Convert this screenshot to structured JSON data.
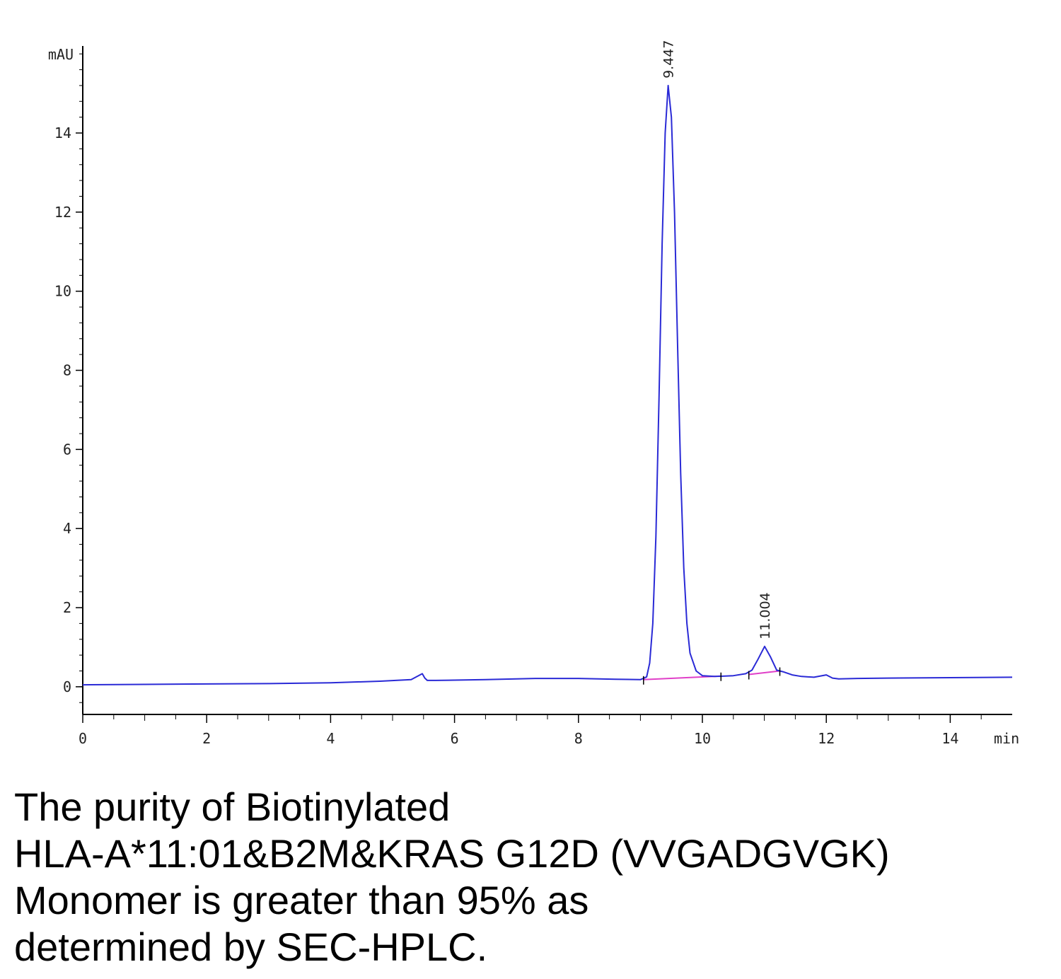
{
  "chart_data": {
    "type": "line",
    "y_unit_label": "mAU",
    "x_unit_label": "min",
    "xlim": [
      0,
      15
    ],
    "ylim": [
      -0.7,
      16.2
    ],
    "x_ticks": [
      0,
      2,
      4,
      6,
      8,
      10,
      12,
      14
    ],
    "y_ticks": [
      0,
      2,
      4,
      6,
      8,
      10,
      12,
      14
    ],
    "grid": false,
    "colors": {
      "signal": "#2a2ad6",
      "baseline": "#e040c8",
      "axis": "#000000"
    },
    "series": [
      {
        "x": [
          0,
          1,
          2,
          3,
          4,
          4.8,
          5.3,
          5.48,
          5.52,
          5.56,
          5.7,
          6.5,
          7.3,
          8,
          8.6,
          9.0,
          9.1,
          9.15,
          9.2,
          9.25,
          9.3,
          9.35,
          9.4,
          9.447,
          9.5,
          9.55,
          9.6,
          9.65,
          9.7,
          9.75,
          9.8,
          9.9,
          10.0,
          10.2,
          10.5,
          10.7,
          10.8,
          10.9,
          11.004,
          11.1,
          11.2,
          11.3,
          11.45,
          11.6,
          11.8,
          12.0,
          12.1,
          12.2,
          12.5,
          13,
          14,
          15
        ],
        "y": [
          0.05,
          0.06,
          0.07,
          0.08,
          0.1,
          0.14,
          0.18,
          0.33,
          0.22,
          0.16,
          0.16,
          0.18,
          0.21,
          0.21,
          0.19,
          0.18,
          0.25,
          0.6,
          1.6,
          3.8,
          7.3,
          11.2,
          14.0,
          15.2,
          14.4,
          12.0,
          8.6,
          5.4,
          3.0,
          1.6,
          0.85,
          0.4,
          0.28,
          0.26,
          0.28,
          0.33,
          0.42,
          0.7,
          1.02,
          0.75,
          0.42,
          0.38,
          0.3,
          0.26,
          0.24,
          0.3,
          0.22,
          0.2,
          0.21,
          0.22,
          0.23,
          0.24
        ]
      }
    ],
    "peaks": [
      {
        "retention_time": 9.447,
        "label": "9.447"
      },
      {
        "retention_time": 11.004,
        "label": "11.004"
      }
    ],
    "integration_baselines": [
      {
        "x": [
          9.05,
          10.3
        ],
        "y": [
          0.18,
          0.27
        ]
      },
      {
        "x": [
          10.75,
          11.25
        ],
        "y": [
          0.31,
          0.4
        ]
      }
    ]
  },
  "caption_lines": [
    "The purity of Biotinylated",
    "HLA-A*11:01&B2M&KRAS G12D (VVGADGVGK)",
    "Monomer is greater than 95% as",
    "determined by SEC-HPLC."
  ]
}
